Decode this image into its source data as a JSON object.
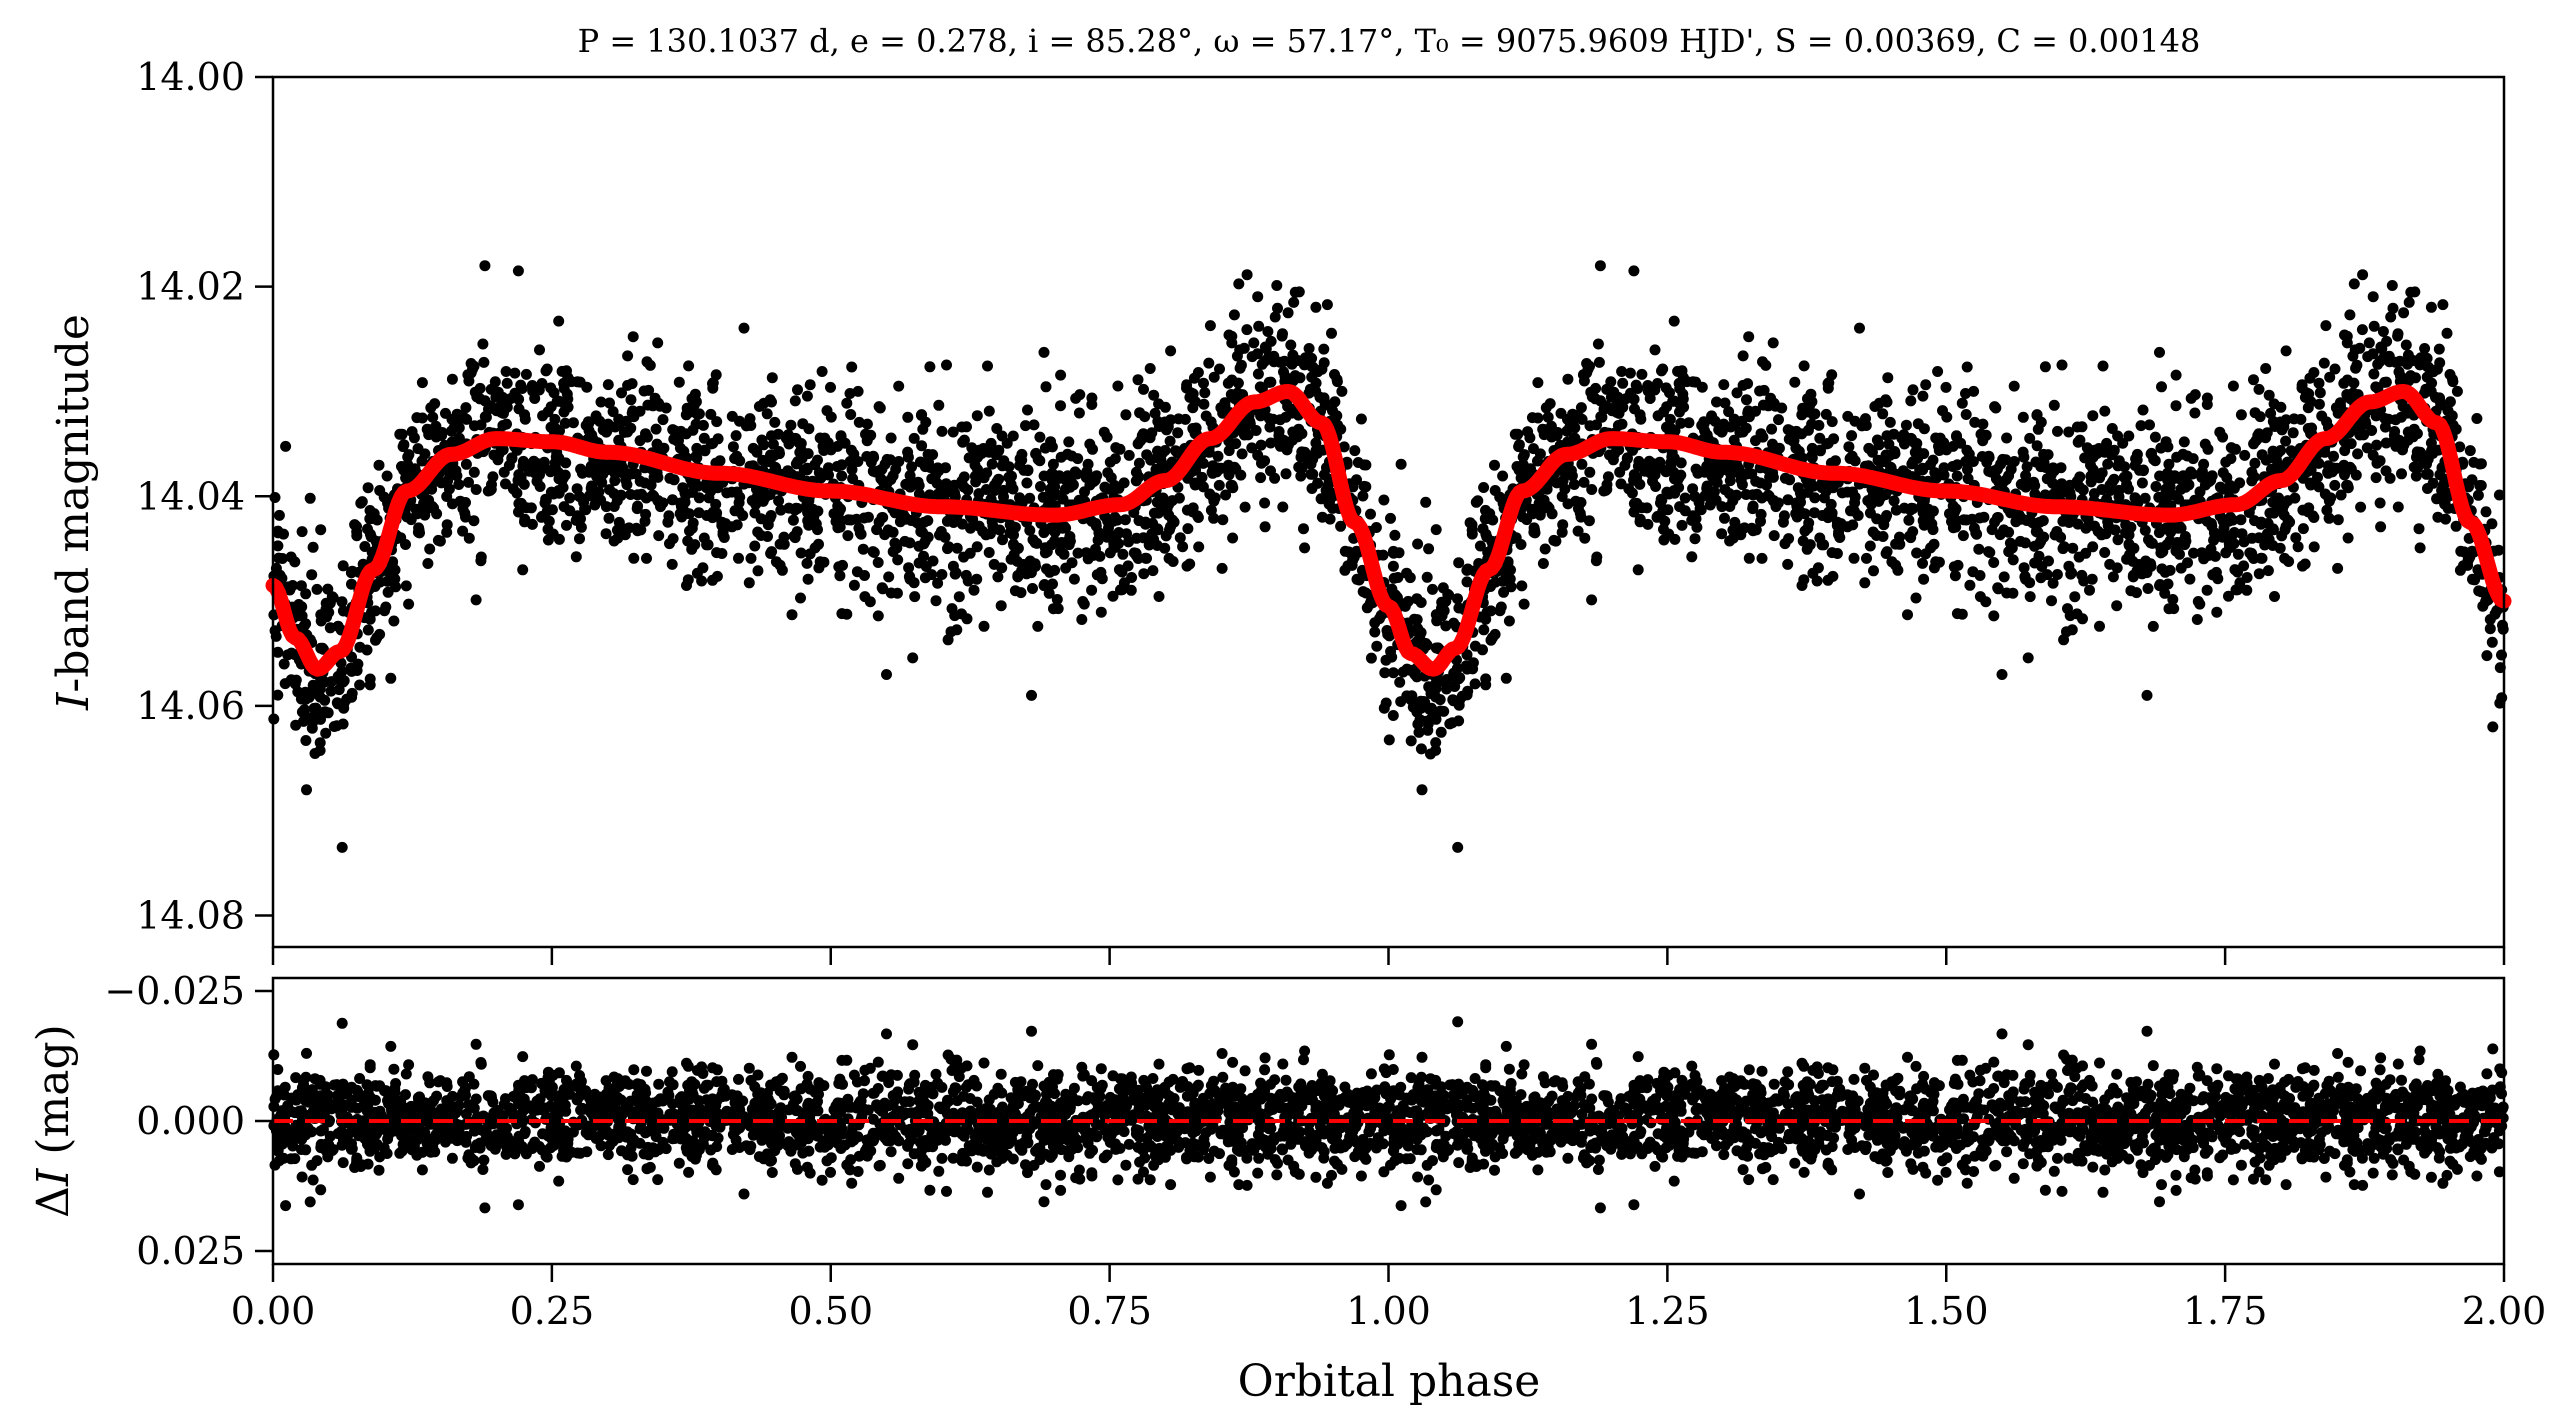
{
  "figure": {
    "title": "P = 130.1037 d, e = 0.278, i = 85.28°, ω = 57.17°, T₀ = 9075.9609 HJD', S = 0.00369, C = 0.00148"
  },
  "chart_data": [
    {
      "type": "scatter",
      "panel": "light-curve",
      "xlabel": "",
      "ylabel": "I-band magnitude",
      "xlim": [
        0.0,
        2.0
      ],
      "ylim": [
        14.083,
        14.0
      ],
      "y_inverted": true,
      "yticks": [
        14.0,
        14.02,
        14.04,
        14.06,
        14.08
      ],
      "ytick_labels": [
        "14.00",
        "14.02",
        "14.04",
        "14.06",
        "14.08"
      ],
      "xticks": [
        0.0,
        0.25,
        0.5,
        0.75,
        1.0,
        1.25,
        1.5,
        1.75,
        2.0
      ],
      "show_xtick_labels": false,
      "grid": false,
      "series": [
        {
          "role": "observations",
          "marker": "circle",
          "color": "#000000",
          "model_sample": [
            [
              0.0,
              14.0485
            ],
            [
              0.02,
              14.0535
            ],
            [
              0.04,
              14.0565
            ],
            [
              0.06,
              14.0548
            ],
            [
              0.09,
              14.047
            ],
            [
              0.12,
              14.0395
            ],
            [
              0.16,
              14.036
            ],
            [
              0.2,
              14.0345
            ],
            [
              0.25,
              14.0348
            ],
            [
              0.3,
              14.0358
            ],
            [
              0.4,
              14.0378
            ],
            [
              0.5,
              14.0395
            ],
            [
              0.6,
              14.041
            ],
            [
              0.7,
              14.0418
            ],
            [
              0.76,
              14.0408
            ],
            [
              0.8,
              14.0385
            ],
            [
              0.84,
              14.0345
            ],
            [
              0.88,
              14.031
            ],
            [
              0.91,
              14.03
            ],
            [
              0.94,
              14.033
            ],
            [
              0.97,
              14.0425
            ],
            [
              1.0,
              14.0505
            ],
            [
              1.02,
              14.055
            ],
            [
              1.04,
              14.0565
            ],
            [
              1.06,
              14.0545
            ],
            [
              1.09,
              14.047
            ],
            [
              1.12,
              14.0395
            ],
            [
              1.16,
              14.036
            ],
            [
              1.2,
              14.0345
            ],
            [
              1.25,
              14.0348
            ],
            [
              1.3,
              14.0358
            ],
            [
              1.4,
              14.0378
            ],
            [
              1.5,
              14.0395
            ],
            [
              1.6,
              14.041
            ],
            [
              1.7,
              14.0418
            ],
            [
              1.76,
              14.0408
            ],
            [
              1.8,
              14.0385
            ],
            [
              1.84,
              14.0345
            ],
            [
              1.88,
              14.031
            ],
            [
              1.91,
              14.03
            ],
            [
              1.94,
              14.033
            ],
            [
              1.97,
              14.0425
            ],
            [
              2.0,
              14.05
            ]
          ],
          "scatter_rms": 0.0055,
          "n_points_per_cycle": 2200,
          "outliers": [
            [
              0.905,
              14.0245
            ],
            [
              0.91,
              14.0225
            ],
            [
              0.915,
              14.0215
            ],
            [
              0.92,
              14.0205
            ],
            [
              1.905,
              14.0245
            ],
            [
              1.91,
              14.0225
            ],
            [
              1.915,
              14.0215
            ],
            [
              1.92,
              14.0205
            ],
            [
              0.062,
              14.0735
            ],
            [
              1.062,
              14.0735
            ],
            [
              0.03,
              14.068
            ],
            [
              1.03,
              14.068
            ],
            [
              0.19,
              14.018
            ],
            [
              1.19,
              14.018
            ],
            [
              0.22,
              14.0185
            ],
            [
              1.22,
              14.0185
            ],
            [
              0.68,
              14.059
            ],
            [
              1.68,
              14.059
            ],
            [
              0.55,
              14.057
            ],
            [
              1.55,
              14.057
            ],
            [
              1.99,
              14.062
            ]
          ]
        },
        {
          "role": "model",
          "color": "#ff0000",
          "line": "solid"
        }
      ]
    },
    {
      "type": "scatter",
      "panel": "residuals",
      "xlabel": "Orbital phase",
      "ylabel": "ΔI (mag)",
      "xlim": [
        0.0,
        2.0
      ],
      "ylim": [
        0.0275,
        -0.0275
      ],
      "y_inverted": true,
      "yticks": [
        -0.025,
        0.0,
        0.025
      ],
      "ytick_labels": [
        "−0.025",
        "0.000",
        "0.025"
      ],
      "xticks": [
        0.0,
        0.25,
        0.5,
        0.75,
        1.0,
        1.25,
        1.5,
        1.75,
        2.0
      ],
      "xtick_labels": [
        "0.00",
        "0.25",
        "0.50",
        "0.75",
        "1.00",
        "1.25",
        "1.50",
        "1.75",
        "2.00"
      ],
      "grid": false,
      "series": [
        {
          "role": "residuals",
          "marker": "circle",
          "color": "#000000",
          "scatter_rms": 0.0055
        },
        {
          "role": "zero-line",
          "y": 0.0,
          "color": "#ff0000",
          "line": "dashed"
        }
      ]
    }
  ]
}
